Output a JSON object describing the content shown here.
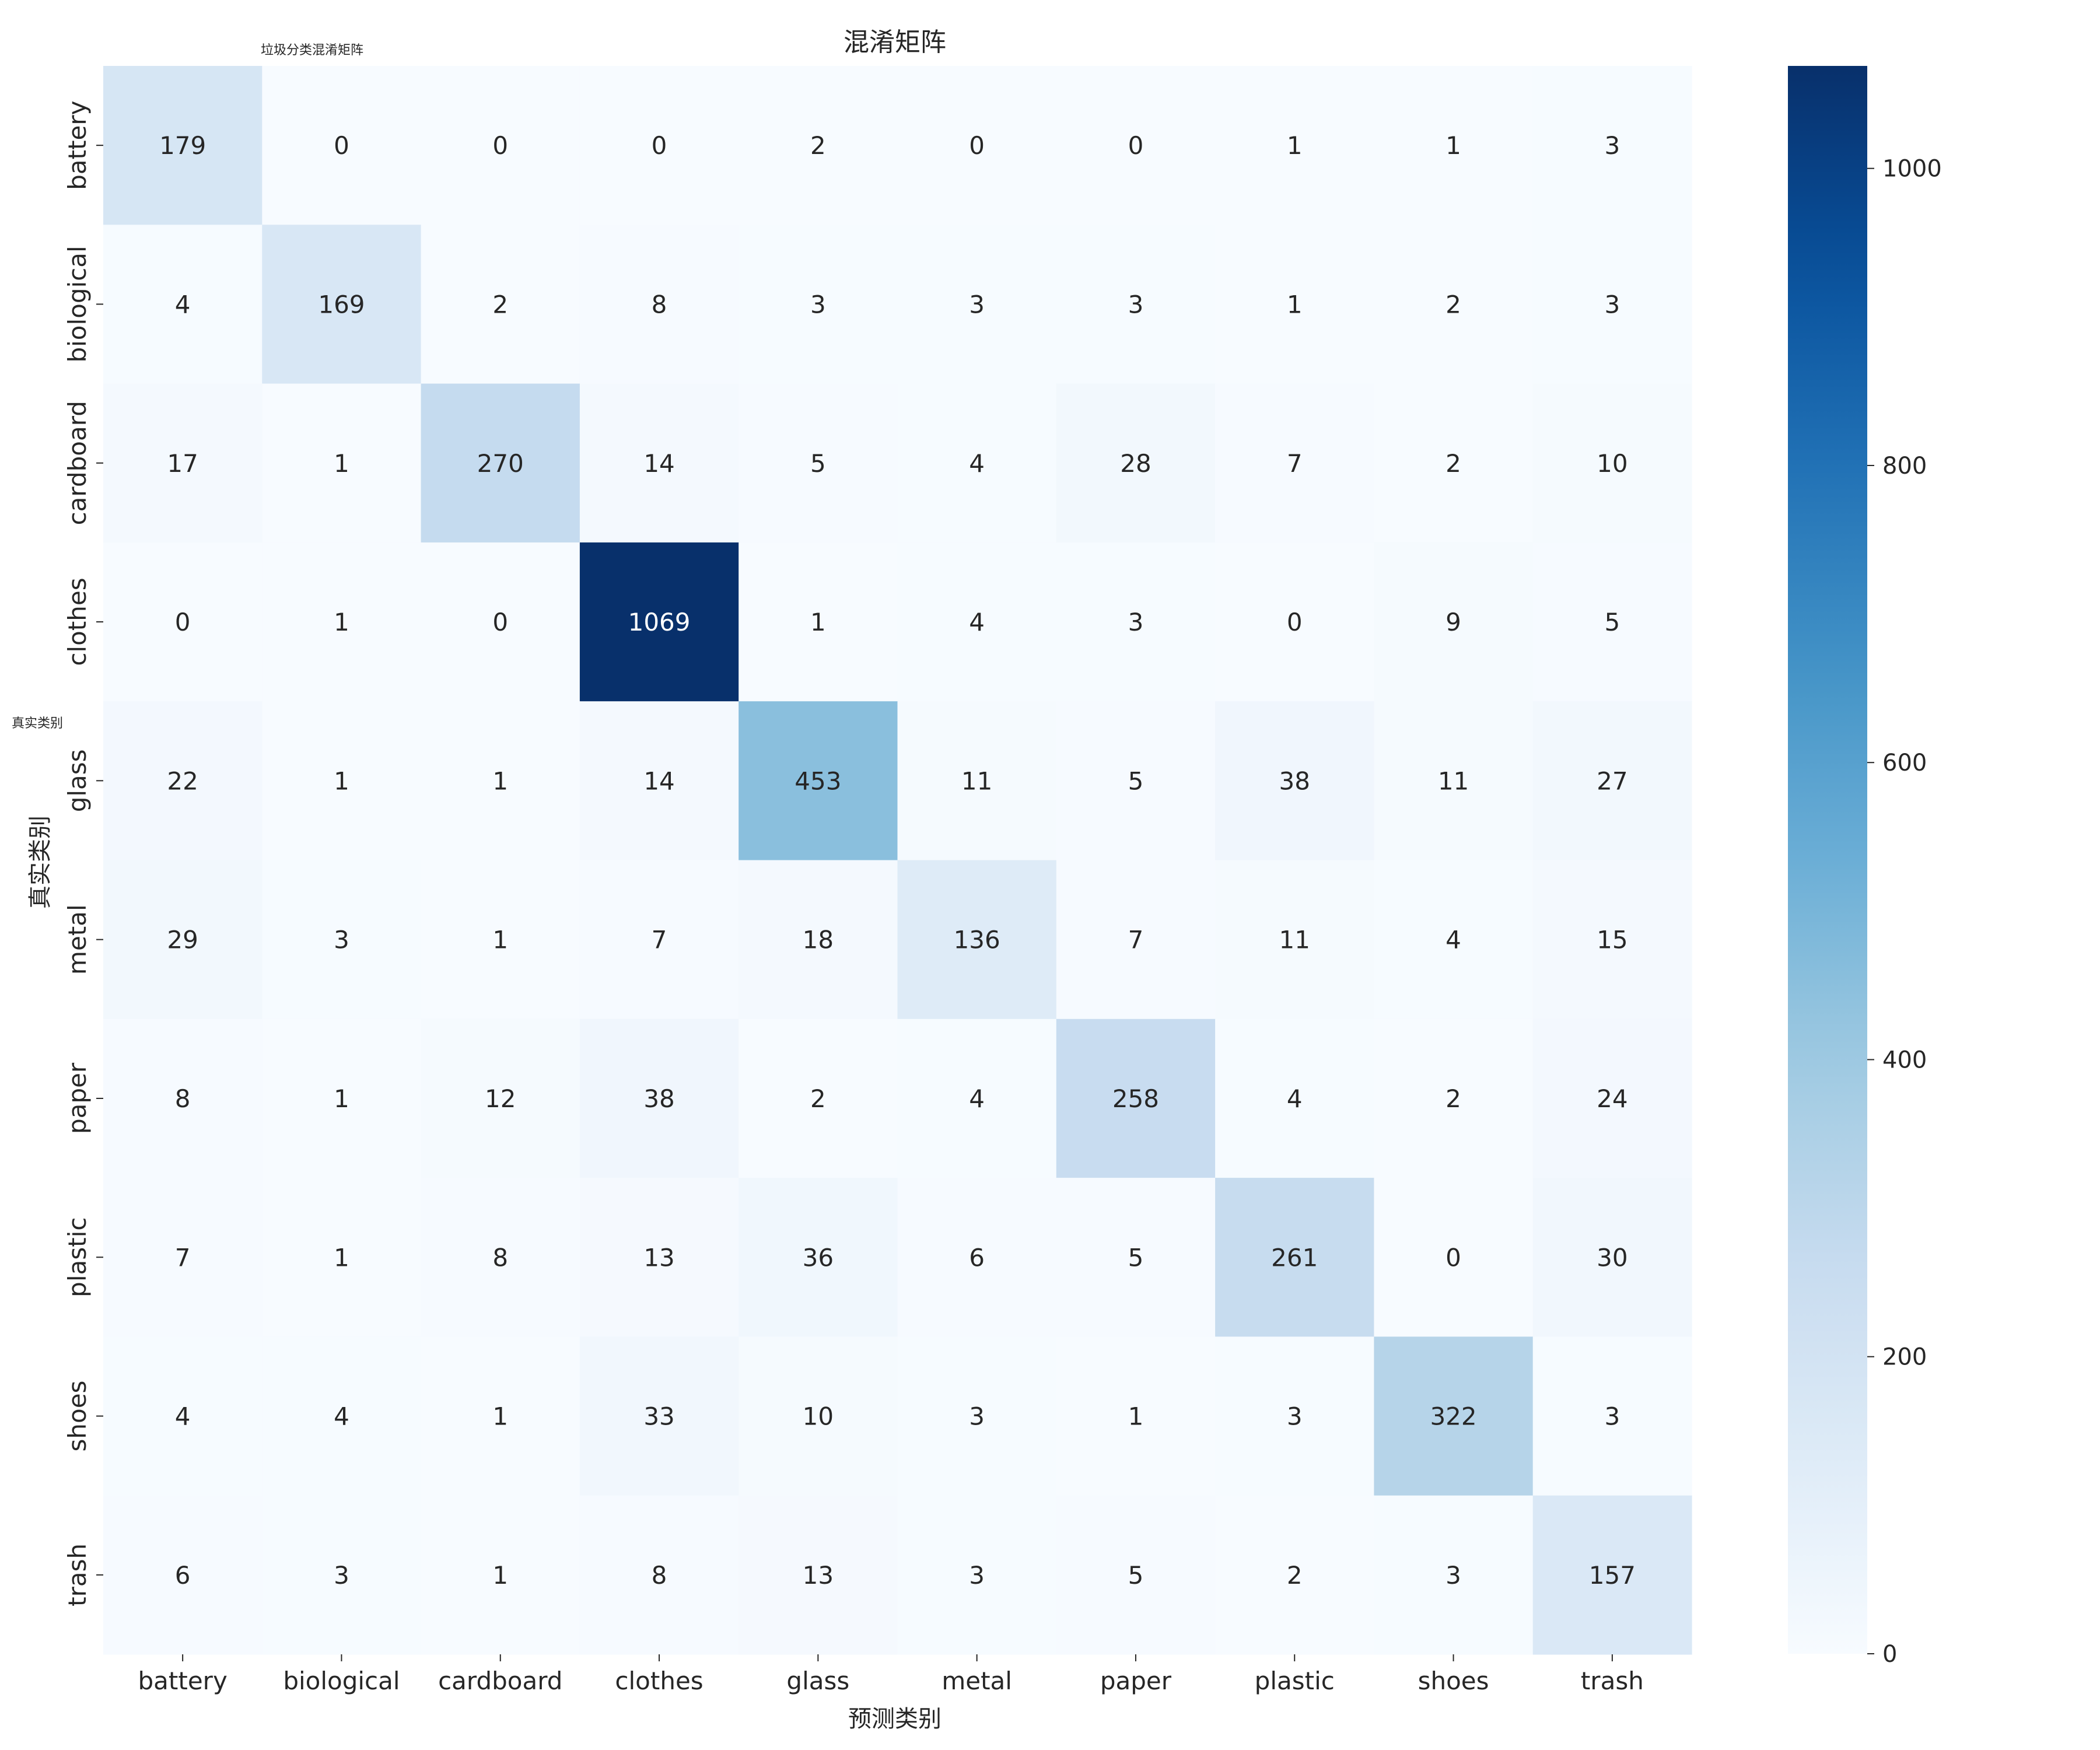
{
  "chart_data": {
    "type": "heatmap",
    "title": "混淆矩阵",
    "subtitle": "垃圾分类混淆矩阵",
    "xlabel": "预测类别",
    "ylabel": "真实类别",
    "ylabel_secondary": "真实类别",
    "x_categories": [
      "battery",
      "biological",
      "cardboard",
      "clothes",
      "glass",
      "metal",
      "paper",
      "plastic",
      "shoes",
      "trash"
    ],
    "y_categories": [
      "battery",
      "biological",
      "cardboard",
      "clothes",
      "glass",
      "metal",
      "paper",
      "plastic",
      "shoes",
      "trash"
    ],
    "values": [
      [
        179,
        0,
        0,
        0,
        2,
        0,
        0,
        1,
        1,
        3
      ],
      [
        4,
        169,
        2,
        8,
        3,
        3,
        3,
        1,
        2,
        3
      ],
      [
        17,
        1,
        270,
        14,
        5,
        4,
        28,
        7,
        2,
        10
      ],
      [
        0,
        1,
        0,
        1069,
        1,
        4,
        3,
        0,
        9,
        5
      ],
      [
        22,
        1,
        1,
        14,
        453,
        11,
        5,
        38,
        11,
        27
      ],
      [
        29,
        3,
        1,
        7,
        18,
        136,
        7,
        11,
        4,
        15
      ],
      [
        8,
        1,
        12,
        38,
        2,
        4,
        258,
        4,
        2,
        24
      ],
      [
        7,
        1,
        8,
        13,
        36,
        6,
        5,
        261,
        0,
        30
      ],
      [
        4,
        4,
        1,
        33,
        10,
        3,
        1,
        3,
        322,
        3
      ],
      [
        6,
        3,
        1,
        8,
        13,
        3,
        5,
        2,
        3,
        157
      ]
    ],
    "colormap": "Blues",
    "color_range": [
      0,
      1069
    ],
    "colorbar_ticks": [
      0,
      200,
      400,
      600,
      800,
      1000
    ],
    "colorbar_position": "right",
    "grid": false
  }
}
